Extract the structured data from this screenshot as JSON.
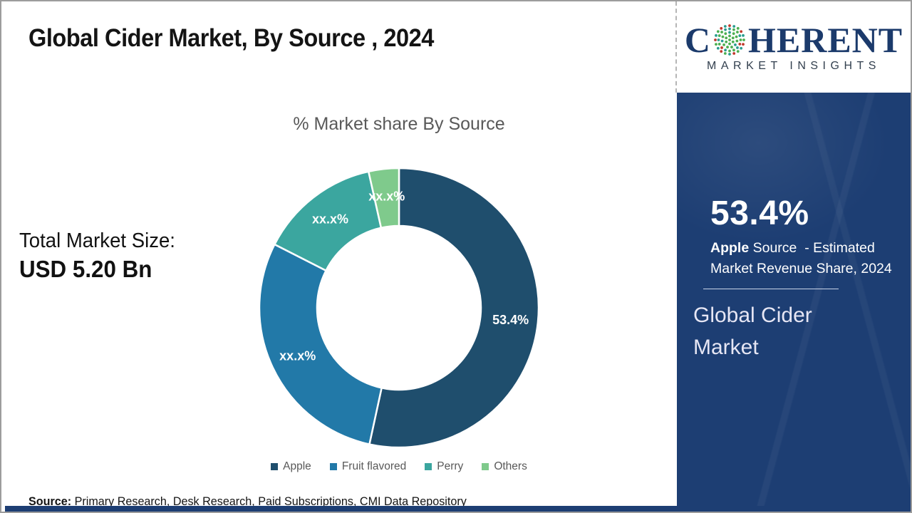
{
  "page": {
    "title": "Global Cider Market, By Source , 2024",
    "source_label": "Source:",
    "source_text": " Primary Research, Desk Research, Paid Subscriptions, CMI Data Repository"
  },
  "left_panel": {
    "total_label": "Total Market Size:",
    "total_value": "USD 5.20 Bn"
  },
  "logo": {
    "name": "coherent-market-insights-logo",
    "part1": "C",
    "part2": "HERENT",
    "subtitle": "MARKET INSIGHTS",
    "text_color": "#1b3a6b",
    "globe_colors": [
      "#4caf50",
      "#2a9d8f",
      "#c0392b"
    ]
  },
  "sidebar": {
    "bg_color": "#1d3e73",
    "stat_value": "53.4%",
    "desc_bold": "Apple",
    "desc_rest": " Source  - Estimated Market Revenue Share, 2024",
    "footer_title": "Global Cider Market"
  },
  "chart_data": {
    "type": "pie",
    "subtype": "donut",
    "title": "% Market share By Source",
    "start_angle_deg": 0,
    "direction": "clockwise",
    "hole_radius_ratio": 0.585,
    "legend_position": "bottom",
    "slices": [
      {
        "name": "Apple",
        "value": 53.4,
        "label": "53.4%",
        "color": "#1f4e6d"
      },
      {
        "name": "Fruit flavored",
        "value": 29.1,
        "label": "xx.x%",
        "color": "#2279a8"
      },
      {
        "name": "Perry",
        "value": 14.0,
        "label": "xx.x%",
        "color": "#3ba69f"
      },
      {
        "name": "Others",
        "value": 3.5,
        "label": "xx.x%",
        "color": "#7fca8c"
      }
    ]
  }
}
